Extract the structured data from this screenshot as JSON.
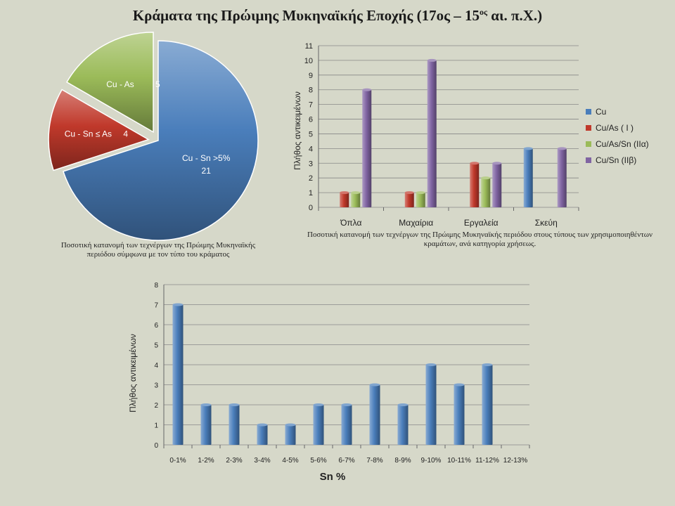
{
  "title": {
    "main": "Κράματα της Πρώιμης Μυκηναϊκής Εποχής (17ος – 15",
    "sup": "ος",
    "end": " αι. π.Χ.)"
  },
  "colors": {
    "Cu": "#4a7ebb",
    "Cu/As": "#c0392b",
    "Cu/As/Sn": "#9bbb59",
    "Cu/Sn": "#8064a2",
    "background": "#d6d8c9"
  },
  "chart_data": [
    {
      "id": "pie",
      "type": "pie",
      "slices": [
        {
          "name": "Cu - Sn >5%",
          "value": 21,
          "color": "#4a7ebb"
        },
        {
          "name": "Cu - Sn  ≤ As",
          "value": 4,
          "color": "#c0392b"
        },
        {
          "name": "Cu - As",
          "value": 5,
          "color": "#9bbb59"
        }
      ],
      "caption": "Ποσοτική κατανομή των τεχνέργων της Πρώιμης Μυκηναϊκής περιόδου σύμφωνα με τον τύπο του κράματος"
    },
    {
      "id": "bars",
      "type": "bar",
      "categories": [
        "Όπλα",
        "Μαχαίρια",
        "Εργαλεία",
        "Σκεύη"
      ],
      "series": [
        {
          "name": "Cu",
          "values": [
            0,
            0,
            0,
            4
          ],
          "color": "#4a7ebb"
        },
        {
          "name": "Cu/As  ( I )",
          "values": [
            1,
            1,
            3,
            0
          ],
          "color": "#c0392b"
        },
        {
          "name": "Cu/As/Sn (IIα)",
          "values": [
            1,
            1,
            2,
            0
          ],
          "color": "#9bbb59"
        },
        {
          "name": "Cu/Sn (IIβ)",
          "values": [
            8,
            10,
            3,
            4
          ],
          "color": "#8064a2"
        }
      ],
      "ylabel": "Πλήθος  αντικειμένων",
      "ylim": [
        0,
        11
      ],
      "yticks": [
        0,
        1,
        2,
        3,
        4,
        5,
        6,
        7,
        8,
        9,
        10,
        11
      ],
      "grid": true,
      "legend": "right",
      "caption": "Ποσοτική κατανομή των τεχνέργων της Πρώιμης Μυκηναϊκής περιόδου στους τύπους των χρησιμοποιηθέντων κραμάτων, ανά κατηγορία χρήσεως."
    },
    {
      "id": "hist",
      "type": "bar",
      "categories": [
        "0-1%",
        "1-2%",
        "2-3%",
        "3-4%",
        "4-5%",
        "5-6%",
        "6-7%",
        "7-8%",
        "8-9%",
        "9-10%",
        "10-11%",
        "11-12%",
        "12-13%"
      ],
      "values": [
        7,
        2,
        2,
        1,
        1,
        2,
        2,
        3,
        2,
        4,
        3,
        4,
        0
      ],
      "color": "#4a7ebb",
      "xlabel": "Sn %",
      "ylabel": "Πλήθος  αντικειμένων",
      "ylim": [
        0,
        8
      ],
      "yticks": [
        0,
        1,
        2,
        3,
        4,
        5,
        6,
        7,
        8
      ],
      "grid": true
    }
  ]
}
